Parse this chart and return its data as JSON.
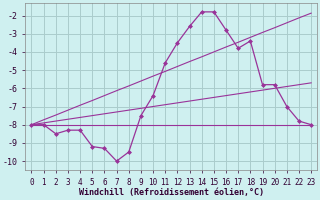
{
  "xlabel": "Windchill (Refroidissement éolien,°C)",
  "background_color": "#cff0f0",
  "grid_color": "#aacccc",
  "line_color": "#993399",
  "x_hours": [
    0,
    1,
    2,
    3,
    4,
    5,
    6,
    7,
    8,
    9,
    10,
    11,
    12,
    13,
    14,
    15,
    16,
    17,
    18,
    19,
    20,
    21,
    22,
    23
  ],
  "y_windchill": [
    -8.0,
    -8.0,
    -8.5,
    -8.3,
    -8.3,
    -9.2,
    -9.3,
    -10.0,
    -9.5,
    -7.5,
    -6.4,
    -4.6,
    -3.5,
    -2.6,
    -1.8,
    -1.8,
    -2.8,
    -3.8,
    -3.4,
    -5.8,
    -5.8,
    -7.0,
    -7.8,
    -8.0
  ],
  "y_flat": [
    -8.0,
    -8.0,
    -8.0,
    -8.0,
    -8.0,
    -8.0,
    -8.0,
    -8.0,
    -8.0,
    -8.0,
    -8.0,
    -8.0,
    -8.0,
    -8.0,
    -8.0,
    -8.0,
    -8.0,
    -8.0,
    -8.0,
    -8.0,
    -8.0,
    -8.0,
    -8.0,
    -8.0
  ],
  "y_linear_steep": [
    -8.0,
    -7.73,
    -7.47,
    -7.2,
    -6.93,
    -6.67,
    -6.4,
    -6.13,
    -5.87,
    -5.6,
    -5.33,
    -5.07,
    -4.8,
    -4.53,
    -4.27,
    -4.0,
    -3.73,
    -3.47,
    -3.2,
    -2.93,
    -2.67,
    -2.4,
    -2.13,
    -1.87
  ],
  "y_linear_shallow": [
    -8.0,
    -7.9,
    -7.8,
    -7.7,
    -7.6,
    -7.5,
    -7.4,
    -7.3,
    -7.2,
    -7.1,
    -7.0,
    -6.9,
    -6.8,
    -6.7,
    -6.6,
    -6.5,
    -6.4,
    -6.3,
    -6.2,
    -6.1,
    -6.0,
    -5.9,
    -5.8,
    -5.7
  ],
  "ylim": [
    -10.5,
    -1.3
  ],
  "yticks": [
    -10,
    -9,
    -8,
    -7,
    -6,
    -5,
    -4,
    -3,
    -2
  ],
  "xlim": [
    -0.5,
    23.5
  ],
  "xticks": [
    0,
    1,
    2,
    3,
    4,
    5,
    6,
    7,
    8,
    9,
    10,
    11,
    12,
    13,
    14,
    15,
    16,
    17,
    18,
    19,
    20,
    21,
    22,
    23
  ],
  "tick_fontsize": 5.5,
  "label_fontsize": 6.0
}
